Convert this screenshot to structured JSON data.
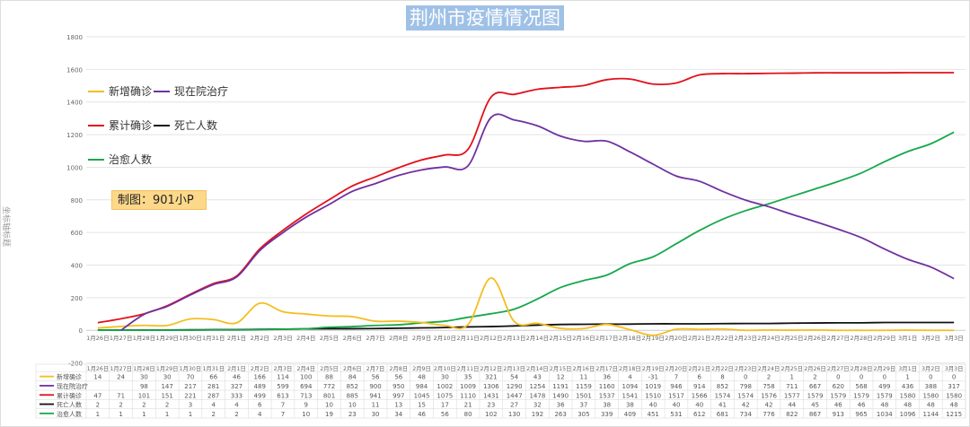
{
  "chart_data": {
    "type": "line",
    "title": "荆州市疫情情况图",
    "ylabel": "坐标轴标题",
    "xlabel": "",
    "ylim": [
      -200,
      1800
    ],
    "yticks": [
      -200,
      0,
      200,
      400,
      600,
      800,
      1000,
      1200,
      1400,
      1600,
      1800
    ],
    "grid": true,
    "legend_placement": "top-left",
    "annotation": "制图：901小P",
    "categories": [
      "1月26日",
      "1月27日",
      "1月28日",
      "1月29日",
      "1月30日",
      "1月31日",
      "2月1日",
      "2月2日",
      "2月3日",
      "2月4日",
      "2月5日",
      "2月6日",
      "2月7日",
      "2月8日",
      "2月9日",
      "2月10日",
      "2月11日",
      "2月12日",
      "2月13日",
      "2月14日",
      "2月15日",
      "2月16日",
      "2月17日",
      "2月18日",
      "2月19日",
      "2月20日",
      "2月21日",
      "2月22日",
      "2月23日",
      "2月24日",
      "2月25日",
      "2月26日",
      "2月27日",
      "2月28日",
      "2月29日",
      "3月1日",
      "3月2日",
      "3月3日"
    ],
    "series": [
      {
        "name": "新增确诊",
        "color": "#f5bd1f",
        "values": [
          14,
          24,
          30,
          30,
          70,
          66,
          46,
          166,
          114,
          100,
          88,
          84,
          56,
          56,
          48,
          30,
          35,
          321,
          54,
          43,
          12,
          11,
          36,
          4,
          -31,
          7,
          6,
          8,
          0,
          2,
          1,
          2,
          0,
          0,
          0,
          1,
          0,
          0
        ]
      },
      {
        "name": "现在院治疗",
        "color": "#7030a0",
        "values": [
          null,
          null,
          98,
          147,
          217,
          281,
          327,
          489,
          599,
          694,
          772,
          852,
          900,
          950,
          984,
          1002,
          1009,
          1306,
          1290,
          1254,
          1191,
          1159,
          1160,
          1094,
          1019,
          946,
          914,
          852,
          798,
          758,
          711,
          667,
          620,
          568,
          499,
          436,
          388,
          317
        ]
      },
      {
        "name": "累计确诊",
        "color": "#e3101a",
        "values": [
          47,
          71,
          101,
          151,
          221,
          287,
          333,
          499,
          613,
          713,
          801,
          885,
          941,
          997,
          1045,
          1075,
          1110,
          1431,
          1447,
          1478,
          1490,
          1501,
          1537,
          1541,
          1510,
          1517,
          1566,
          1574,
          1574,
          1576,
          1577,
          1579,
          1579,
          1579,
          1579,
          1580,
          1580,
          1580
        ]
      },
      {
        "name": "死亡人数",
        "color": "#111111",
        "values": [
          2,
          2,
          2,
          2,
          3,
          4,
          4,
          6,
          7,
          9,
          10,
          10,
          11,
          13,
          15,
          17,
          21,
          23,
          27,
          32,
          36,
          37,
          38,
          38,
          40,
          40,
          40,
          41,
          42,
          42,
          44,
          45,
          46,
          46,
          48,
          48,
          48,
          48
        ]
      },
      {
        "name": "治愈人数",
        "color": "#17a84b",
        "values": [
          1,
          1,
          1,
          1,
          1,
          2,
          2,
          4,
          7,
          10,
          19,
          23,
          30,
          34,
          46,
          56,
          80,
          102,
          130,
          192,
          263,
          305,
          339,
          409,
          451,
          531,
          612,
          681,
          734,
          776,
          822,
          867,
          913,
          965,
          1034,
          1096,
          1144,
          1215
        ]
      }
    ]
  }
}
